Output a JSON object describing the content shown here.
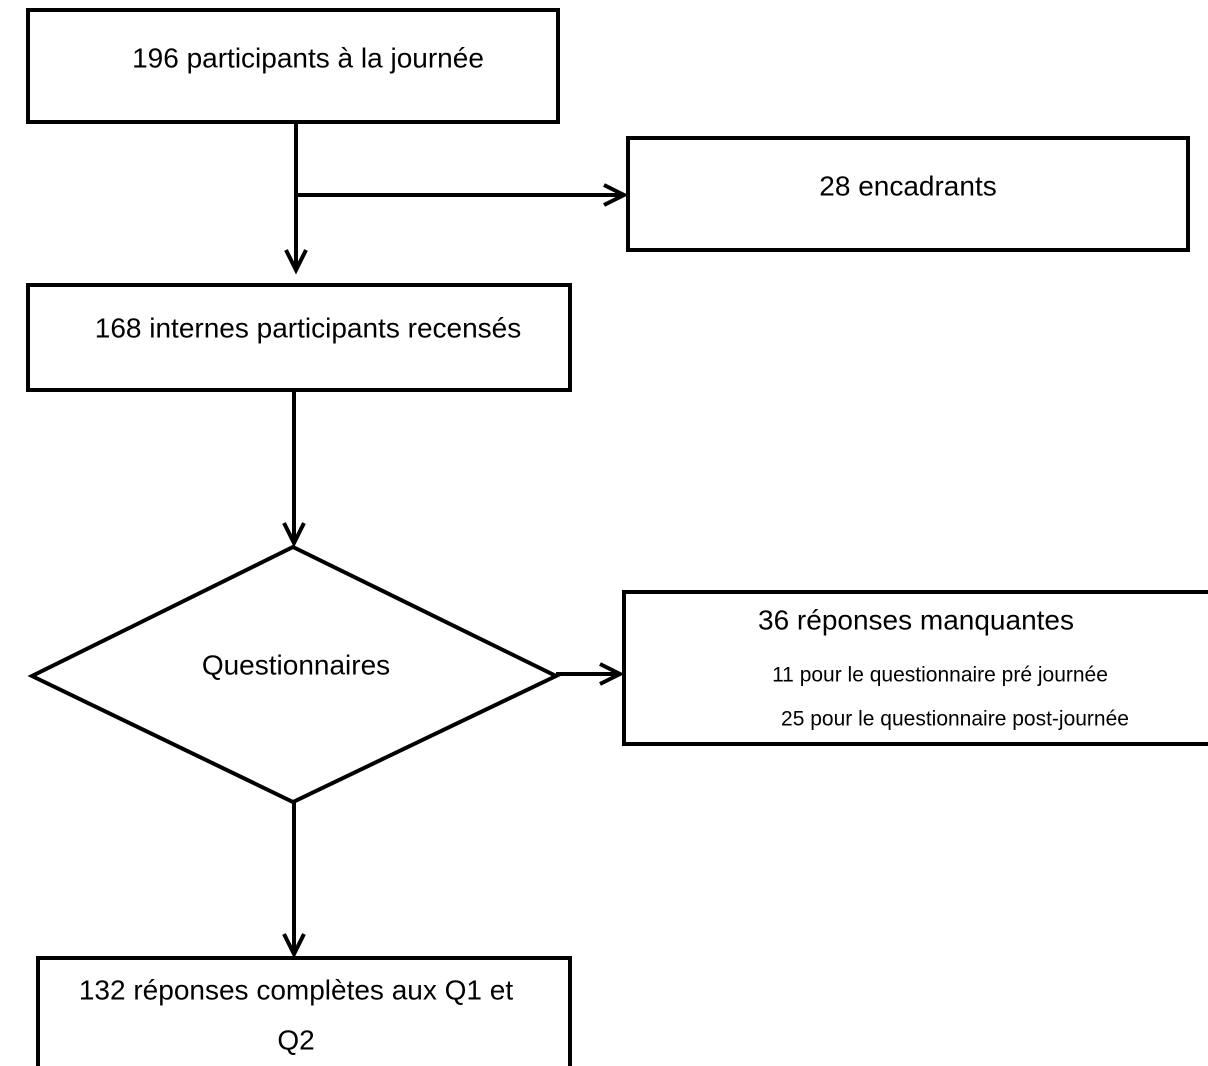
{
  "nodes": [
    {
      "label": "196 participants à la journée"
    },
    {
      "label": "28 encadrants"
    },
    {
      "label": "168 internes participants recensés"
    },
    {
      "label": "Questionnaires"
    },
    {
      "label": "36 réponses manquantes",
      "details": [
        "11 pour le questionnaire pré journée",
        "25 pour le questionnaire post-journée"
      ]
    },
    {
      "lines": [
        "132 réponses complètes aux Q1 et",
        "Q2"
      ]
    }
  ]
}
